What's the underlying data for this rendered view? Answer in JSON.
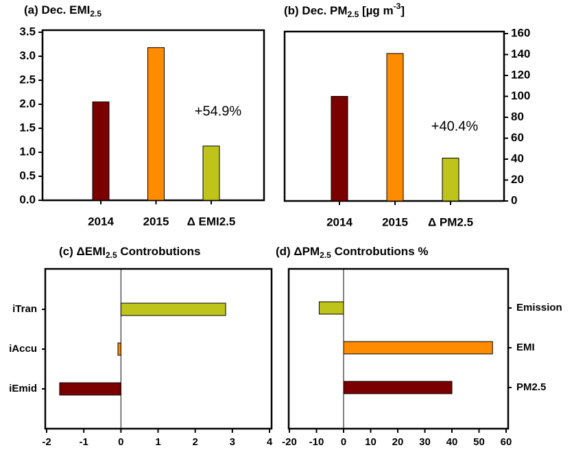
{
  "chart_data": [
    {
      "type": "bar",
      "title": [
        {
          "text": "(a) Dec. EMI"
        },
        {
          "text": "2.5",
          "style": "sub"
        }
      ],
      "categories": [
        "2014",
        "2015",
        "Δ EMI2.5"
      ],
      "values": [
        2.05,
        3.18,
        1.13
      ],
      "colors": [
        "#7b0000",
        "#ff8c00",
        "#bfc41a"
      ],
      "ylim": [
        0,
        3.5
      ],
      "yticks": [
        {
          "value": 0,
          "label": "0.0"
        },
        0.5,
        {
          "value": 1,
          "label": "1.0"
        },
        1.5,
        {
          "value": 2,
          "label": "2.0"
        },
        2.5,
        {
          "value": 3,
          "label": "3.0"
        },
        3.5
      ],
      "value_axis_side": "left",
      "annotation": "+54.9%"
    },
    {
      "type": "bar",
      "title": [
        {
          "text": "(b) Dec. PM"
        },
        {
          "text": "2.5",
          "style": "sub"
        },
        {
          "text": " [µg m"
        },
        {
          "text": "-3",
          "style": "sup"
        },
        {
          "text": "]"
        }
      ],
      "categories": [
        "2014",
        "2015",
        "Δ PM2.5"
      ],
      "values": [
        100,
        141,
        41
      ],
      "colors": [
        "#7b0000",
        "#ff8c00",
        "#bfc41a"
      ],
      "ylim": [
        0,
        160
      ],
      "yticks": [
        0,
        20,
        40,
        60,
        80,
        100,
        120,
        140,
        160
      ],
      "value_axis_side": "right",
      "annotation": "+40.4%"
    },
    {
      "type": "barh",
      "title": [
        {
          "text": "(c) ΔEMI"
        },
        {
          "text": "2.5",
          "style": "sub"
        },
        {
          "text": " Controbutions"
        }
      ],
      "categories": [
        "iTran",
        "iAccu",
        "iEmid"
      ],
      "values": [
        2.82,
        -0.08,
        -1.65
      ],
      "colors": [
        "#bfc41a",
        "#ff8c00",
        "#7b0000"
      ],
      "xlim": [
        -2,
        4
      ],
      "xticks": [
        -2,
        -1,
        0,
        1,
        2,
        3,
        4
      ],
      "category_axis_side": "left"
    },
    {
      "type": "barh",
      "title": [
        {
          "text": "(d) ΔPM"
        },
        {
          "text": "2.5",
          "style": "sub"
        },
        {
          "text": " Controbutions %"
        }
      ],
      "categories": [
        "Emission",
        "EMI",
        "PM2.5"
      ],
      "values": [
        -9,
        55,
        40
      ],
      "colors": [
        "#bfc41a",
        "#ff8c00",
        "#7b0000"
      ],
      "xlim": [
        -20,
        60
      ],
      "xticks": [
        -20,
        -10,
        0,
        10,
        20,
        30,
        40,
        50,
        60
      ],
      "category_axis_side": "right"
    }
  ]
}
